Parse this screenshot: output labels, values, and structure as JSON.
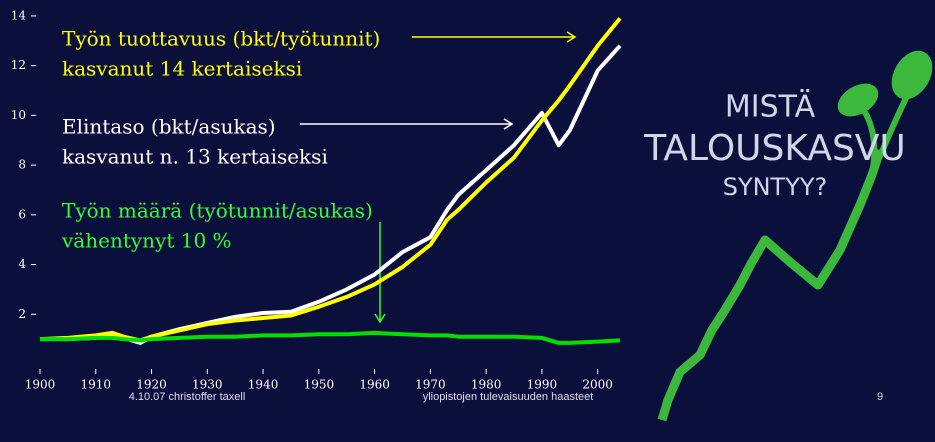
{
  "chart_data": {
    "type": "line",
    "x": [
      1900,
      1905,
      1910,
      1913,
      1915,
      1918,
      1920,
      1925,
      1930,
      1935,
      1940,
      1945,
      1950,
      1955,
      1960,
      1965,
      1970,
      1973,
      1975,
      1980,
      1985,
      1990,
      1993,
      1995,
      2000,
      2004
    ],
    "series": [
      {
        "color": "#ffff00",
        "values": [
          1.0,
          1.05,
          1.15,
          1.25,
          1.1,
          0.95,
          1.1,
          1.35,
          1.6,
          1.75,
          1.85,
          1.95,
          2.3,
          2.7,
          3.2,
          3.9,
          4.8,
          5.8,
          6.2,
          7.3,
          8.3,
          9.8,
          10.6,
          11.2,
          12.8,
          13.9
        ]
      },
      {
        "color": "#ffffff",
        "values": [
          1.0,
          1.0,
          1.05,
          1.2,
          1.05,
          0.85,
          1.1,
          1.4,
          1.65,
          1.9,
          2.05,
          2.1,
          2.5,
          3.0,
          3.6,
          4.5,
          5.1,
          6.2,
          6.8,
          7.8,
          8.8,
          10.1,
          8.8,
          9.4,
          11.8,
          12.8
        ]
      },
      {
        "color": "#00e000",
        "values": [
          1.0,
          1.0,
          1.05,
          1.05,
          1.0,
          0.95,
          1.0,
          1.05,
          1.1,
          1.1,
          1.15,
          1.15,
          1.2,
          1.2,
          1.25,
          1.2,
          1.15,
          1.15,
          1.1,
          1.1,
          1.1,
          1.05,
          0.85,
          0.85,
          0.9,
          0.95
        ]
      }
    ],
    "xlim": [
      1900,
      2004
    ],
    "xticks": [
      1900,
      1910,
      1920,
      1930,
      1940,
      1950,
      1960,
      1970,
      1980,
      1990,
      2000
    ],
    "ylim": [
      0,
      14.5
    ],
    "yticks": [
      2,
      4,
      6,
      8,
      10,
      12,
      14
    ],
    "annotations": [
      {
        "color": "#ffff00",
        "lines": [
          "Työn tuottavuus (bkt/työtunnit)",
          "kasvanut 14 kertaiseksi"
        ]
      },
      {
        "color": "#ffffff",
        "lines": [
          "Elintaso (bkt/asukas)",
          "kasvanut n. 13 kertaiseksi"
        ]
      },
      {
        "color": "#33ff33",
        "lines": [
          "Työn määrä (työtunnit/asukas)",
          "vähentynyt 10 %"
        ]
      }
    ]
  },
  "footer": {
    "date_author": "4.10.07 christoffer taxell",
    "topic": "yliopistojen tulevaisuuden haasteet",
    "page": "9"
  },
  "logo": {
    "lines": [
      "MISTÄ",
      "TALOUSKASVU",
      "SYNTYY?"
    ]
  }
}
